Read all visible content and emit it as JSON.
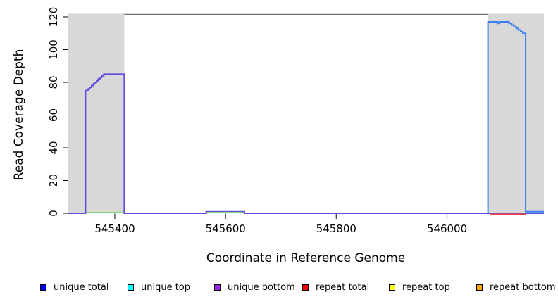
{
  "xaxis": {
    "label": "Coordinate in Reference Genome",
    "ticks": [
      "545400",
      "545600",
      "545800",
      "546000"
    ]
  },
  "yaxis": {
    "label": "Read Coverage Depth",
    "ticks": [
      "0",
      "20",
      "40",
      "60",
      "80",
      "100",
      "120"
    ]
  },
  "legend": [
    {
      "label": "unique total",
      "color": "#0000ff"
    },
    {
      "label": "unique top",
      "color": "#00ffff"
    },
    {
      "label": "unique bottom",
      "color": "#a020f0"
    },
    {
      "label": "repeat total",
      "color": "#ff0000"
    },
    {
      "label": "repeat top",
      "color": "#ffff00"
    },
    {
      "label": "repeat bottom",
      "color": "#ffa500"
    }
  ],
  "chart_data": {
    "type": "line",
    "title": "",
    "xlabel": "Coordinate in Reference Genome",
    "ylabel": "Read Coverage Depth",
    "xlim": [
      545316,
      546175
    ],
    "ylim": [
      0,
      125
    ],
    "x_ticks": [
      545400,
      545600,
      545800,
      546000
    ],
    "y_ticks": [
      0,
      20,
      40,
      60,
      80,
      100,
      120
    ],
    "grid": false,
    "legend_position": "bottom",
    "shaded_regions": [
      {
        "name": "left-gray-band",
        "x0": 545316,
        "x1": 545417,
        "y_top": 122,
        "color": "#d8d8d8"
      },
      {
        "name": "right-gray-band",
        "x0": 546074,
        "x1": 546175,
        "y_top": 122,
        "color": "#d8d8d8"
      }
    ],
    "boundary_line": {
      "x0": 545417,
      "x1": 546074,
      "y": 121.5,
      "color": "#707070"
    },
    "series": [
      {
        "name": "unique-bottom-coverage",
        "color": "#5d4ce2",
        "width": 2,
        "points": [
          [
            545316,
            0
          ],
          [
            545347,
            0
          ],
          [
            545347,
            75
          ],
          [
            545352,
            75
          ],
          [
            545352,
            76
          ],
          [
            545355,
            76
          ],
          [
            545355,
            77
          ],
          [
            545358,
            77
          ],
          [
            545358,
            78
          ],
          [
            545361,
            78
          ],
          [
            545361,
            79
          ],
          [
            545364,
            79
          ],
          [
            545364,
            80
          ],
          [
            545367,
            80
          ],
          [
            545367,
            81
          ],
          [
            545370,
            81
          ],
          [
            545370,
            82
          ],
          [
            545373,
            82
          ],
          [
            545373,
            83
          ],
          [
            545376,
            83
          ],
          [
            545376,
            84
          ],
          [
            545380,
            84
          ],
          [
            545380,
            85
          ],
          [
            545417,
            85
          ],
          [
            545417,
            0
          ],
          [
            545565,
            0
          ],
          [
            545565,
            1
          ],
          [
            545634,
            1
          ],
          [
            545634,
            0
          ],
          [
            546175,
            0
          ]
        ]
      },
      {
        "name": "unique-total-coverage",
        "color": "#3b7ef0",
        "width": 2,
        "points": [
          [
            546074,
            0
          ],
          [
            546074,
            117
          ],
          [
            546091,
            117
          ],
          [
            546091,
            116
          ],
          [
            546094,
            116
          ],
          [
            546094,
            117
          ],
          [
            546112,
            117
          ],
          [
            546112,
            116
          ],
          [
            546117,
            116
          ],
          [
            546117,
            115
          ],
          [
            546121,
            115
          ],
          [
            546121,
            114
          ],
          [
            546125,
            114
          ],
          [
            546125,
            113
          ],
          [
            546129,
            113
          ],
          [
            546129,
            112
          ],
          [
            546133,
            112
          ],
          [
            546133,
            111
          ],
          [
            546137,
            111
          ],
          [
            546137,
            110
          ],
          [
            546142,
            110
          ],
          [
            546142,
            1
          ],
          [
            546175,
            1
          ]
        ]
      },
      {
        "name": "green-zero-segment-left",
        "color": "#7ddc7d",
        "width": 1.5,
        "points": [
          [
            545349,
            0.55
          ],
          [
            545416,
            0.55
          ]
        ]
      },
      {
        "name": "green-zero-segment-middle",
        "color": "#7ddc7d",
        "width": 1.5,
        "points": [
          [
            545567,
            0.55
          ],
          [
            545632,
            0.55
          ]
        ]
      },
      {
        "name": "repeat-total-zero-segment",
        "color": "#f04040",
        "width": 1.5,
        "points": [
          [
            546077,
            -0.55
          ],
          [
            546143,
            -0.55
          ]
        ]
      }
    ]
  }
}
